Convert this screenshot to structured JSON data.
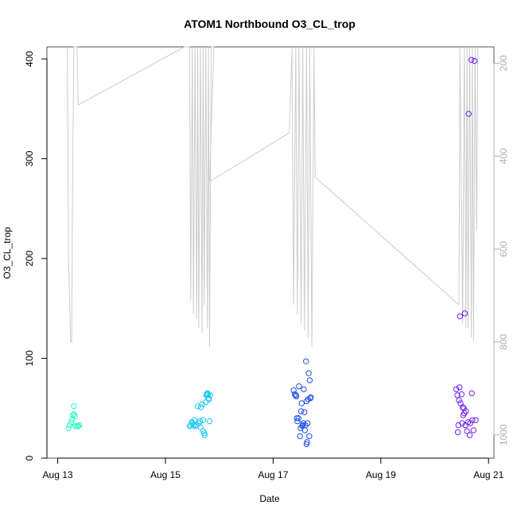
{
  "chart_data": {
    "type": "scatter",
    "title": "ATOM1 Northbound O3_CL_trop",
    "xlabel": "Date",
    "ylabel": "O3_CL_trop",
    "x_unit": "days since Aug 13",
    "xlim": [
      -0.2,
      8.1
    ],
    "ylim": [
      0,
      412
    ],
    "x_ticks": [
      {
        "value": 0,
        "label": "Aug 13"
      },
      {
        "value": 2,
        "label": "Aug 15"
      },
      {
        "value": 4,
        "label": "Aug 17"
      },
      {
        "value": 6,
        "label": "Aug 19"
      },
      {
        "value": 8,
        "label": "Aug 21"
      }
    ],
    "y_ticks": [
      0,
      100,
      200,
      300,
      400
    ],
    "right_axis": {
      "lim": [
        1050,
        165
      ],
      "ticks": [
        200,
        400,
        600,
        800,
        1000
      ],
      "color": "#b0b0b0"
    },
    "grid": false,
    "legend": "none",
    "colors": {
      "point_series_gradient": [
        "#00f5c8",
        "#00c4f5",
        "#1f3cf0",
        "#7a1ff5"
      ],
      "pressure_line": "#cccccc"
    },
    "series": [
      {
        "type": "scatter",
        "color": "#2ff5c8",
        "points": [
          [
            0.2,
            30
          ],
          [
            0.22,
            33
          ],
          [
            0.25,
            36
          ],
          [
            0.27,
            39
          ],
          [
            0.28,
            43
          ],
          [
            0.3,
            44
          ],
          [
            0.3,
            52
          ],
          [
            0.32,
            42
          ],
          [
            0.33,
            32
          ],
          [
            0.36,
            32
          ],
          [
            0.38,
            32
          ],
          [
            0.4,
            33
          ]
        ]
      },
      {
        "type": "scatter",
        "color": "#18c8f2",
        "points": [
          [
            2.45,
            32
          ],
          [
            2.47,
            33
          ],
          [
            2.49,
            36
          ],
          [
            2.5,
            35
          ],
          [
            2.52,
            33
          ],
          [
            2.54,
            38
          ],
          [
            2.55,
            32
          ],
          [
            2.57,
            33
          ],
          [
            2.6,
            52
          ],
          [
            2.62,
            35
          ],
          [
            2.64,
            37
          ],
          [
            2.65,
            31
          ],
          [
            2.66,
            51
          ],
          [
            2.68,
            54
          ],
          [
            2.7,
            38
          ],
          [
            2.7,
            27
          ],
          [
            2.72,
            25
          ],
          [
            2.73,
            23
          ],
          [
            2.75,
            56
          ],
          [
            2.76,
            63
          ],
          [
            2.77,
            64
          ],
          [
            2.78,
            65
          ],
          [
            2.79,
            64
          ],
          [
            2.8,
            60
          ],
          [
            2.81,
            59
          ],
          [
            2.82,
            37
          ],
          [
            2.83,
            63
          ]
        ]
      },
      {
        "type": "scatter",
        "color": "#1d4ee8",
        "points": [
          [
            4.38,
            68
          ],
          [
            4.4,
            64
          ],
          [
            4.42,
            63
          ],
          [
            4.43,
            62
          ],
          [
            4.44,
            40
          ],
          [
            4.45,
            37
          ],
          [
            4.47,
            40
          ],
          [
            4.48,
            72
          ],
          [
            4.5,
            22
          ],
          [
            4.51,
            30
          ],
          [
            4.52,
            47
          ],
          [
            4.53,
            55
          ],
          [
            4.54,
            32
          ],
          [
            4.55,
            33
          ],
          [
            4.56,
            35
          ],
          [
            4.57,
            69
          ],
          [
            4.58,
            46
          ],
          [
            4.59,
            28
          ],
          [
            4.6,
            33
          ],
          [
            4.61,
            97
          ],
          [
            4.62,
            57
          ],
          [
            4.62,
            14
          ],
          [
            4.63,
            16
          ],
          [
            4.64,
            35
          ],
          [
            4.65,
            59
          ],
          [
            4.66,
            85
          ],
          [
            4.67,
            22
          ],
          [
            4.68,
            78
          ],
          [
            4.69,
            60
          ],
          [
            4.7,
            61
          ]
        ]
      },
      {
        "type": "scatter",
        "color": "#7020f0",
        "points": [
          [
            7.4,
            69
          ],
          [
            7.42,
            63
          ],
          [
            7.43,
            26
          ],
          [
            7.44,
            33
          ],
          [
            7.45,
            58
          ],
          [
            7.46,
            71
          ],
          [
            7.47,
            142
          ],
          [
            7.48,
            55
          ],
          [
            7.5,
            64
          ],
          [
            7.51,
            35
          ],
          [
            7.52,
            51
          ],
          [
            7.53,
            43
          ],
          [
            7.54,
            50
          ],
          [
            7.55,
            45
          ],
          [
            7.56,
            145
          ],
          [
            7.57,
            33
          ],
          [
            7.58,
            47
          ],
          [
            7.6,
            27
          ],
          [
            7.62,
            36
          ],
          [
            7.63,
            345
          ],
          [
            7.65,
            23
          ],
          [
            7.66,
            35
          ],
          [
            7.68,
            399
          ],
          [
            7.69,
            65
          ],
          [
            7.7,
            38
          ],
          [
            7.72,
            28
          ],
          [
            7.74,
            398
          ],
          [
            7.76,
            38
          ]
        ]
      },
      {
        "type": "line",
        "color": "#cccccc",
        "axis": "right",
        "points": [
          [
            0.18,
            165
          ],
          [
            0.2,
            620
          ],
          [
            0.22,
            700
          ],
          [
            0.24,
            800
          ],
          [
            0.26,
            800
          ],
          [
            0.28,
            400
          ],
          [
            0.3,
            165
          ],
          [
            0.34,
            165
          ],
          [
            0.36,
            165
          ],
          [
            0.38,
            290
          ],
          [
            2.35,
            165
          ],
          [
            2.45,
            165
          ],
          [
            2.47,
            710
          ],
          [
            2.5,
            165
          ],
          [
            2.52,
            740
          ],
          [
            2.55,
            165
          ],
          [
            2.58,
            750
          ],
          [
            2.6,
            165
          ],
          [
            2.62,
            770
          ],
          [
            2.65,
            165
          ],
          [
            2.68,
            780
          ],
          [
            2.7,
            165
          ],
          [
            2.72,
            720
          ],
          [
            2.75,
            165
          ],
          [
            2.78,
            770
          ],
          [
            2.8,
            165
          ],
          [
            2.82,
            810
          ],
          [
            2.85,
            165
          ],
          [
            2.9,
            165
          ],
          [
            2.82,
            455
          ],
          [
            4.3,
            350
          ],
          [
            4.35,
            165
          ],
          [
            4.38,
            720
          ],
          [
            4.42,
            165
          ],
          [
            4.45,
            740
          ],
          [
            4.48,
            165
          ],
          [
            4.52,
            760
          ],
          [
            4.55,
            165
          ],
          [
            4.58,
            775
          ],
          [
            4.62,
            165
          ],
          [
            4.65,
            790
          ],
          [
            4.68,
            165
          ],
          [
            4.72,
            810
          ],
          [
            4.76,
            165
          ],
          [
            4.78,
            445
          ],
          [
            7.45,
            720
          ],
          [
            7.47,
            165
          ],
          [
            7.52,
            760
          ],
          [
            7.55,
            165
          ],
          [
            7.58,
            770
          ],
          [
            7.6,
            165
          ],
          [
            7.62,
            770
          ],
          [
            7.65,
            165
          ],
          [
            7.68,
            790
          ],
          [
            7.7,
            165
          ],
          [
            7.72,
            800
          ],
          [
            7.75,
            165
          ],
          [
            7.78,
            560
          ],
          [
            7.8,
            165
          ]
        ]
      }
    ]
  }
}
